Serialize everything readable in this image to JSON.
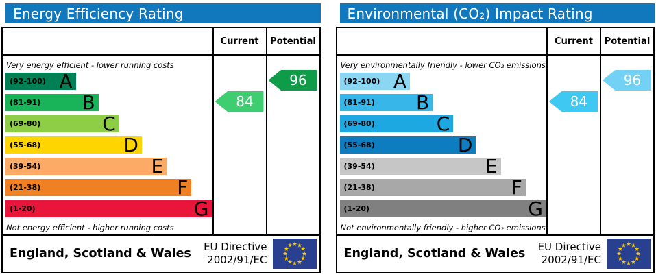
{
  "charts": [
    {
      "title": "Energy Efficiency Rating",
      "header_color": "#1278be",
      "columns": {
        "current": "Current",
        "potential": "Potential"
      },
      "top_caption": "Very energy efficient - lower running costs",
      "bottom_caption": "Not energy efficient - higher running costs",
      "bands": [
        {
          "range": "(92-100)",
          "letter": "A",
          "color": "#008054",
          "width_pct": 34
        },
        {
          "range": "(81-91)",
          "letter": "B",
          "color": "#19b459",
          "width_pct": 45
        },
        {
          "range": "(69-80)",
          "letter": "C",
          "color": "#8dce46",
          "width_pct": 55
        },
        {
          "range": "(55-68)",
          "letter": "D",
          "color": "#ffd500",
          "width_pct": 66
        },
        {
          "range": "(39-54)",
          "letter": "E",
          "color": "#fcaa65",
          "width_pct": 78
        },
        {
          "range": "(21-38)",
          "letter": "F",
          "color": "#ef8023",
          "width_pct": 90
        },
        {
          "range": "(1-20)",
          "letter": "G",
          "color": "#e9153b",
          "width_pct": 100
        }
      ],
      "current": {
        "value": "84",
        "band": "B",
        "band_index": 1,
        "color": "#3ecd71"
      },
      "potential": {
        "value": "96",
        "band": "A",
        "band_index": 0,
        "color": "#0e9c49"
      },
      "footer": {
        "region": "England, Scotland & Wales",
        "directive_line1": "EU Directive",
        "directive_line2": "2002/91/EC",
        "flag_bg": "#293f8f",
        "flag_star_color": "#ffcc00"
      }
    },
    {
      "title": "Environmental (CO₂) Impact Rating",
      "header_color": "#1278be",
      "columns": {
        "current": "Current",
        "potential": "Potential"
      },
      "top_caption": "Very environmentally friendly - lower CO₂ emissions",
      "bottom_caption": "Not environmentally friendly - higher CO₂ emissions",
      "bands": [
        {
          "range": "(92-100)",
          "letter": "A",
          "color": "#8bd6f3",
          "width_pct": 34
        },
        {
          "range": "(81-91)",
          "letter": "B",
          "color": "#37b6e9",
          "width_pct": 45
        },
        {
          "range": "(69-80)",
          "letter": "C",
          "color": "#1ea8e2",
          "width_pct": 55
        },
        {
          "range": "(55-68)",
          "letter": "D",
          "color": "#0d7dbf",
          "width_pct": 66
        },
        {
          "range": "(39-54)",
          "letter": "E",
          "color": "#c6c6c6",
          "width_pct": 78
        },
        {
          "range": "(21-38)",
          "letter": "F",
          "color": "#a8a8a8",
          "width_pct": 90
        },
        {
          "range": "(1-20)",
          "letter": "G",
          "color": "#808080",
          "width_pct": 100
        }
      ],
      "current": {
        "value": "84",
        "band": "B",
        "band_index": 1,
        "color": "#3ec8f2"
      },
      "potential": {
        "value": "96",
        "band": "A",
        "band_index": 0,
        "color": "#73d1f6"
      },
      "footer": {
        "region": "England, Scotland & Wales",
        "directive_line1": "EU Directive",
        "directive_line2": "2002/91/EC",
        "flag_bg": "#293f8f",
        "flag_star_color": "#ffcc00"
      }
    }
  ],
  "chart_data": [
    {
      "type": "bar",
      "title": "Energy Efficiency Rating",
      "orientation": "horizontal",
      "categories": [
        "A (92-100)",
        "B (81-91)",
        "C (69-80)",
        "D (55-68)",
        "E (39-54)",
        "F (21-38)",
        "G (1-20)"
      ],
      "values": [
        34,
        45,
        55,
        66,
        78,
        90,
        100
      ],
      "values_note": "decorative band bar lengths as % of band area width",
      "band_colors": [
        "#008054",
        "#19b459",
        "#8dce46",
        "#ffd500",
        "#fcaa65",
        "#ef8023",
        "#e9153b"
      ],
      "ratings": {
        "current": 84,
        "current_band": "B",
        "potential": 96,
        "potential_band": "A"
      },
      "annotations": [
        "Very energy efficient - lower running costs",
        "Not energy efficient - higher running costs"
      ],
      "footer": [
        "England, Scotland & Wales",
        "EU Directive 2002/91/EC"
      ]
    },
    {
      "type": "bar",
      "title": "Environmental (CO₂) Impact Rating",
      "orientation": "horizontal",
      "categories": [
        "A (92-100)",
        "B (81-91)",
        "C (69-80)",
        "D (55-68)",
        "E (39-54)",
        "F (21-38)",
        "G (1-20)"
      ],
      "values": [
        34,
        45,
        55,
        66,
        78,
        90,
        100
      ],
      "values_note": "decorative band bar lengths as % of band area width",
      "band_colors": [
        "#8bd6f3",
        "#37b6e9",
        "#1ea8e2",
        "#0d7dbf",
        "#c6c6c6",
        "#a8a8a8",
        "#808080"
      ],
      "ratings": {
        "current": 84,
        "current_band": "B",
        "potential": 96,
        "potential_band": "A"
      },
      "annotations": [
        "Very environmentally friendly - lower CO₂ emissions",
        "Not environmentally friendly - higher CO₂ emissions"
      ],
      "footer": [
        "England, Scotland & Wales",
        "EU Directive 2002/91/EC"
      ]
    }
  ]
}
